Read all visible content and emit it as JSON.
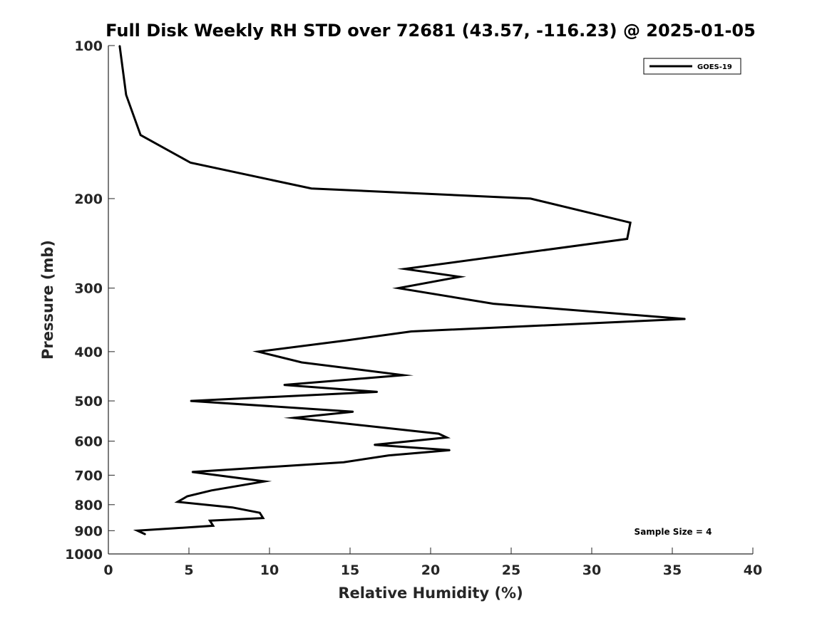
{
  "chart_data": {
    "type": "line",
    "title": "Full Disk Weekly RH STD over 72681 (43.57, -116.23) @ 2025-01-05",
    "xlabel": "Relative Humidity (%)",
    "ylabel": "Pressure (mb)",
    "xlim": [
      0,
      40
    ],
    "ylim": [
      100,
      1000
    ],
    "yscale": "log",
    "yreversed": true,
    "grid": false,
    "x_ticks": [
      0,
      5,
      10,
      15,
      20,
      25,
      30,
      35,
      40
    ],
    "x_tick_labels": [
      "0",
      "5",
      "10",
      "15",
      "20",
      "25",
      "30",
      "35",
      "40"
    ],
    "y_ticks": [
      100,
      200,
      300,
      400,
      500,
      600,
      700,
      800,
      900,
      1000
    ],
    "y_tick_labels": [
      "100",
      "200",
      "300",
      "400",
      "500",
      "600",
      "700",
      "800",
      "900",
      "1000"
    ],
    "legend_position": "top-right",
    "annotation": "Sample Size = 4",
    "color": "#000000",
    "series": [
      {
        "name": "GOES-19",
        "points": [
          [
            0.7,
            100
          ],
          [
            1.1,
            125
          ],
          [
            2.0,
            150
          ],
          [
            5.1,
            170
          ],
          [
            12.6,
            191
          ],
          [
            26.2,
            200
          ],
          [
            32.4,
            223
          ],
          [
            32.2,
            240
          ],
          [
            18.4,
            275
          ],
          [
            21.8,
            285
          ],
          [
            18.0,
            300
          ],
          [
            23.9,
            322
          ],
          [
            35.8,
            345
          ],
          [
            18.8,
            365
          ],
          [
            14.8,
            380
          ],
          [
            9.3,
            400
          ],
          [
            12.0,
            420
          ],
          [
            18.3,
            445
          ],
          [
            10.9,
            465
          ],
          [
            16.7,
            480
          ],
          [
            5.1,
            500
          ],
          [
            15.2,
            525
          ],
          [
            11.5,
            540
          ],
          [
            20.5,
            580
          ],
          [
            21.0,
            590
          ],
          [
            16.5,
            610
          ],
          [
            21.2,
            625
          ],
          [
            17.4,
            640
          ],
          [
            14.6,
            660
          ],
          [
            5.2,
            690
          ],
          [
            9.7,
            720
          ],
          [
            6.4,
            750
          ],
          [
            4.9,
            770
          ],
          [
            4.3,
            790
          ],
          [
            7.7,
            810
          ],
          [
            9.4,
            830
          ],
          [
            9.6,
            850
          ],
          [
            6.3,
            860
          ],
          [
            6.5,
            880
          ],
          [
            1.8,
            900
          ],
          [
            2.3,
            915
          ]
        ]
      }
    ]
  }
}
